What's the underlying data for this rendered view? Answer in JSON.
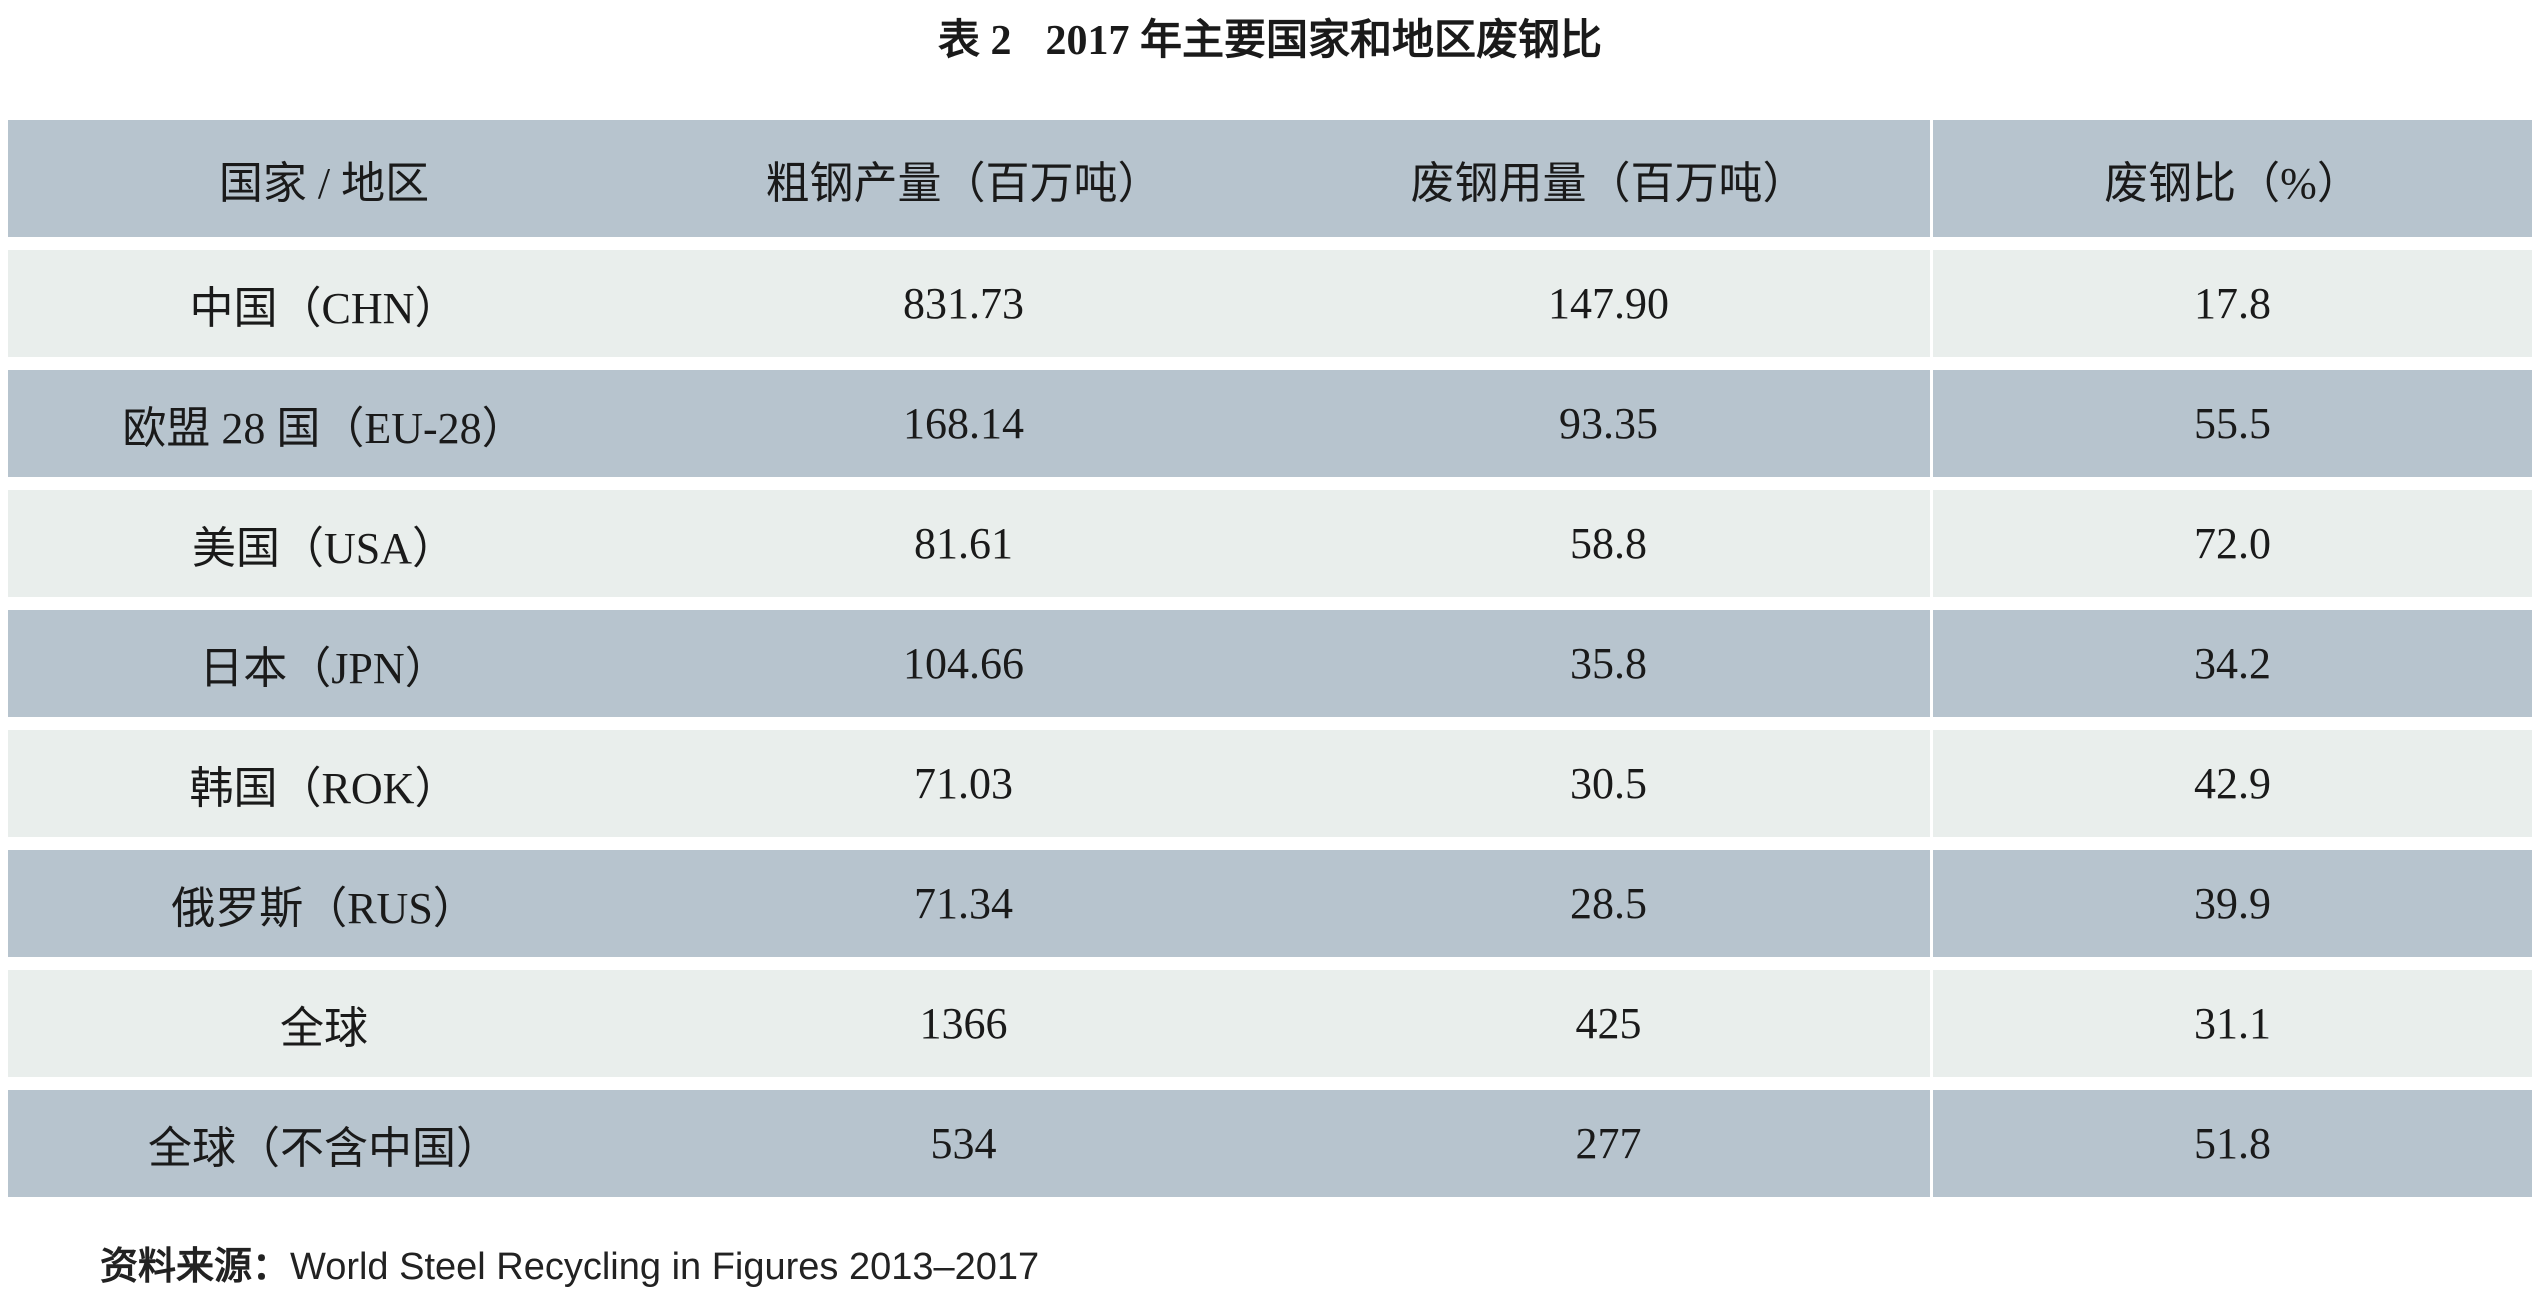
{
  "title": {
    "label": "表 2",
    "text": "2017 年主要国家和地区废钢比"
  },
  "table": {
    "headers": [
      "国家 / 地区",
      "粗钢产量（百万吨）",
      "废钢用量（百万吨）",
      "废钢比（%）"
    ],
    "rows": [
      [
        "中国（CHN）",
        "831.73",
        "147.90",
        "17.8"
      ],
      [
        "欧盟 28 国（EU-28）",
        "168.14",
        "93.35",
        "55.5"
      ],
      [
        "美国（USA）",
        "81.61",
        "58.8",
        "72.0"
      ],
      [
        "日本（JPN）",
        "104.66",
        "35.8",
        "34.2"
      ],
      [
        "韩国（ROK）",
        "71.03",
        "30.5",
        "42.9"
      ],
      [
        "俄罗斯（RUS）",
        "71.34",
        "28.5",
        "39.9"
      ],
      [
        "全球",
        "1366",
        "425",
        "31.1"
      ],
      [
        "全球（不含中国）",
        "534",
        "277",
        "51.8"
      ]
    ]
  },
  "source": {
    "label": "资料来源：",
    "text": "World Steel Recycling in Figures 2013–2017"
  },
  "chart_data": {
    "type": "table",
    "title": "表 2 2017 年主要国家和地区废钢比",
    "columns": [
      "国家 / 地区",
      "粗钢产量（百万吨）",
      "废钢用量（百万吨）",
      "废钢比（%）"
    ],
    "records": [
      {
        "region": "中国（CHN）",
        "crude_steel_output_mt": 831.73,
        "scrap_usage_mt": 147.9,
        "scrap_ratio_pct": 17.8
      },
      {
        "region": "欧盟 28 国（EU-28）",
        "crude_steel_output_mt": 168.14,
        "scrap_usage_mt": 93.35,
        "scrap_ratio_pct": 55.5
      },
      {
        "region": "美国（USA）",
        "crude_steel_output_mt": 81.61,
        "scrap_usage_mt": 58.8,
        "scrap_ratio_pct": 72.0
      },
      {
        "region": "日本（JPN）",
        "crude_steel_output_mt": 104.66,
        "scrap_usage_mt": 35.8,
        "scrap_ratio_pct": 34.2
      },
      {
        "region": "韩国（ROK）",
        "crude_steel_output_mt": 71.03,
        "scrap_usage_mt": 30.5,
        "scrap_ratio_pct": 42.9
      },
      {
        "region": "俄罗斯（RUS）",
        "crude_steel_output_mt": 71.34,
        "scrap_usage_mt": 28.5,
        "scrap_ratio_pct": 39.9
      },
      {
        "region": "全球",
        "crude_steel_output_mt": 1366,
        "scrap_usage_mt": 425,
        "scrap_ratio_pct": 31.1
      },
      {
        "region": "全球（不含中国）",
        "crude_steel_output_mt": 534,
        "scrap_usage_mt": 277,
        "scrap_ratio_pct": 51.8
      }
    ]
  },
  "colors": {
    "row_dark": "#b7c4ce",
    "row_light": "#e9eeec",
    "gap": "#ffffff",
    "text": "#1a1a1a"
  }
}
